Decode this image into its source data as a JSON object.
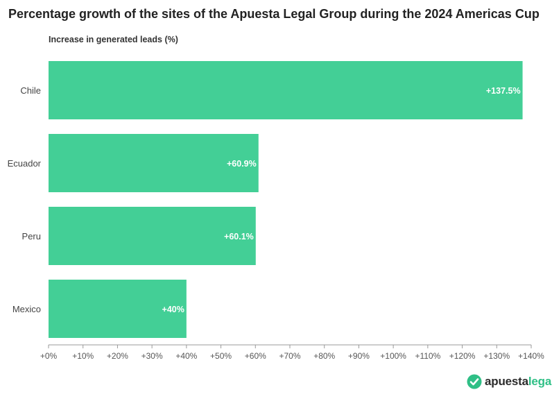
{
  "chart_data": {
    "type": "bar",
    "orientation": "horizontal",
    "title": "Percentage growth of the sites of the Apuesta Legal Group during the 2024 Americas Cup",
    "subtitle": "Increase in generated leads (%)",
    "categories": [
      "Chile",
      "Ecuador",
      "Peru",
      "Mexico"
    ],
    "values": [
      137.5,
      60.9,
      60.1,
      40
    ],
    "data_labels": [
      "+137.5%",
      "+60.9%",
      "+60.1%",
      "+40%"
    ],
    "xlim": [
      0,
      140
    ],
    "x_ticks": [
      0,
      10,
      20,
      30,
      40,
      50,
      60,
      70,
      80,
      90,
      100,
      110,
      120,
      130,
      140
    ],
    "x_tick_labels": [
      "+0%",
      "+10%",
      "+20%",
      "+30%",
      "+40%",
      "+50%",
      "+60%",
      "+70%",
      "+80%",
      "+90%",
      "+100%",
      "+110%",
      "+120%",
      "+130%",
      "+140%"
    ],
    "bar_color": "#43cf96",
    "grid": false
  },
  "branding": {
    "logo_text_main": "apuesta",
    "logo_text_accent": "legal",
    "logo_icon": "checkmark-badge-icon",
    "accent_color": "#2fbf86"
  }
}
